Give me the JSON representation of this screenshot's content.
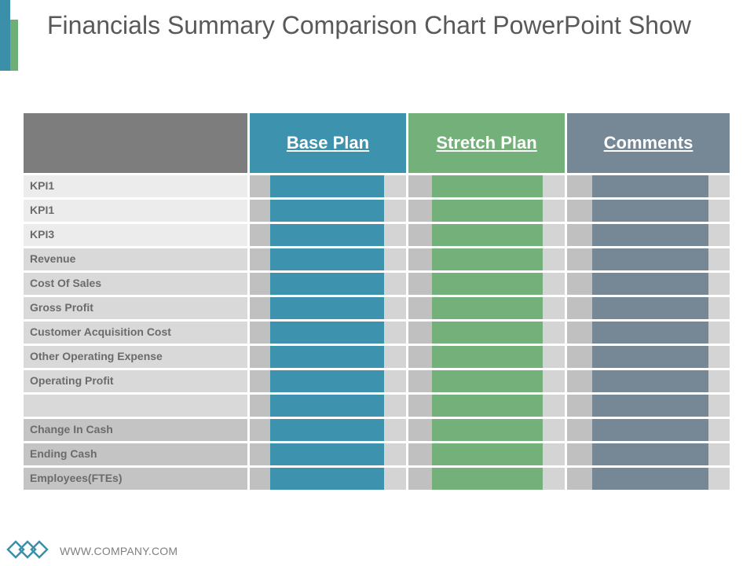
{
  "title": "Financials Summary Comparison Chart PowerPoint Show",
  "table": {
    "columns": [
      "Base Plan",
      "Stretch Plan",
      "Comments"
    ],
    "rows": [
      "KPI1",
      "KPI1",
      "KPI3",
      "Revenue",
      "Cost Of Sales",
      "Gross  Profit",
      "Customer Acquisition Cost",
      "Other Operating Expense",
      "Operating Profit",
      "",
      "Change In Cash",
      "Ending Cash",
      "Employees(FTEs)"
    ]
  },
  "footer": {
    "website": "WWW.COMPANY.COM",
    "logo_icon": "diamond-chain-icon"
  },
  "colors": {
    "base_plan": "#3d93ad",
    "stretch_plan": "#74b07a",
    "comments": "#768796",
    "header_blank": "#7d7d7d"
  }
}
